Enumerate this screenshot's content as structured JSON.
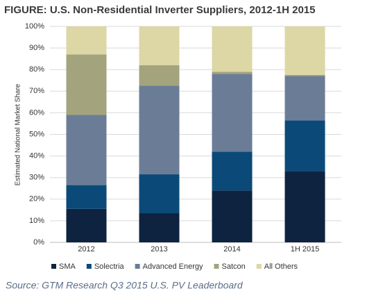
{
  "chart_data": {
    "type": "stacked_bar",
    "title": "FIGURE: U.S. Non-Residential Inverter Suppliers, 2012-1H 2015",
    "y_label": "Estimated National Market Share",
    "categories": [
      "2012",
      "2013",
      "2014",
      "1H 2015"
    ],
    "series": [
      {
        "name": "SMA",
        "color": "#0e2340",
        "values": [
          15.5,
          13.5,
          24,
          33
        ]
      },
      {
        "name": "Solectria",
        "color": "#0b4a78",
        "values": [
          11,
          18,
          18,
          23.5
        ]
      },
      {
        "name": "Advanced Energy",
        "color": "#6b7d96",
        "values": [
          32.5,
          41,
          36,
          20.5
        ]
      },
      {
        "name": "Satcon",
        "color": "#a3a47d",
        "values": [
          28,
          9.5,
          1,
          0.5
        ]
      },
      {
        "name": "All Others",
        "color": "#dcd7a4",
        "values": [
          13,
          18,
          21,
          22.5
        ]
      }
    ],
    "ylim": [
      0,
      100
    ],
    "yticks": [
      {
        "value": 0,
        "label": "0%"
      },
      {
        "value": 10,
        "label": "10%"
      },
      {
        "value": 20,
        "label": "20%"
      },
      {
        "value": 30,
        "label": "30%"
      },
      {
        "value": 40,
        "label": "40%"
      },
      {
        "value": 50,
        "label": "50%"
      },
      {
        "value": 60,
        "label": "60%"
      },
      {
        "value": 70,
        "label": "70%"
      },
      {
        "value": 80,
        "label": "80%"
      },
      {
        "value": 90,
        "label": "90%"
      },
      {
        "value": 100,
        "label": "100%"
      }
    ],
    "grid": true,
    "legend": "bottom",
    "source": "Source: GTM Research Q3 2015 U.S. PV Leaderboard"
  }
}
